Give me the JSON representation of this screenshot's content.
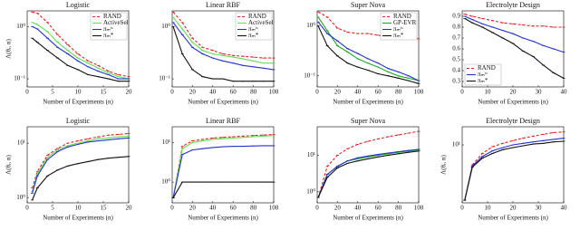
{
  "chart_data": [
    {
      "type": "line",
      "title": "Logistic",
      "xlabel": "Number of Experiments (n)",
      "ylabel": "Λ(θᵣ, n)",
      "log_y": true,
      "legend": "upper right",
      "x": [
        1,
        2,
        4,
        6,
        8,
        10,
        12,
        14,
        16,
        18,
        20
      ],
      "xlim": [
        0,
        20
      ],
      "xticks": [
        0,
        5,
        10,
        15,
        20
      ],
      "ylim": [
        0.07,
        2
      ],
      "yticks": [
        {
          "value": 0.1,
          "label": "10⁻¹"
        },
        {
          "value": 1,
          "label": "10⁰"
        }
      ],
      "series": [
        {
          "name": "RAND",
          "color": "#e02020",
          "dash": true,
          "values": [
            1.9,
            1.8,
            1.2,
            0.7,
            0.45,
            0.3,
            0.22,
            0.18,
            0.14,
            0.12,
            0.11
          ]
        },
        {
          "name": "ActiveSel",
          "color": "#66dd55",
          "values": [
            1.2,
            1.1,
            0.8,
            0.5,
            0.35,
            0.25,
            0.2,
            0.16,
            0.13,
            0.11,
            0.1
          ]
        },
        {
          "name": "πₘᵗˢ",
          "color": "#2233cc",
          "values": [
            1.0,
            0.9,
            0.6,
            0.4,
            0.3,
            0.22,
            0.17,
            0.14,
            0.12,
            0.1,
            0.1
          ]
        },
        {
          "name": "πₘ*",
          "color": "#111111",
          "values": [
            0.6,
            0.5,
            0.35,
            0.25,
            0.18,
            0.15,
            0.12,
            0.11,
            0.1,
            0.09,
            0.09
          ]
        }
      ]
    },
    {
      "type": "line",
      "title": "Linear RBF",
      "xlabel": "Number of Experiments (n)",
      "log_y": true,
      "legend": "upper right",
      "x": [
        1,
        10,
        20,
        30,
        40,
        50,
        60,
        70,
        80,
        90,
        100
      ],
      "xlim": [
        0,
        100
      ],
      "xticks": [
        0,
        20,
        40,
        60,
        80,
        100
      ],
      "ylim": [
        0.07,
        2
      ],
      "yticks": [
        {
          "value": 0.1,
          "label": "10⁻¹"
        },
        {
          "value": 1,
          "label": "10⁰"
        }
      ],
      "series": [
        {
          "name": "RAND",
          "color": "#e02020",
          "dash": true,
          "values": [
            1.9,
            1.2,
            0.6,
            0.4,
            0.35,
            0.3,
            0.28,
            0.27,
            0.26,
            0.25,
            0.25
          ]
        },
        {
          "name": "ActiveSel",
          "color": "#66dd55",
          "values": [
            1.5,
            0.9,
            0.5,
            0.35,
            0.3,
            0.28,
            0.26,
            0.24,
            0.22,
            0.2,
            0.2
          ]
        },
        {
          "name": "πₘᵗˢ",
          "color": "#2233cc",
          "values": [
            1.2,
            0.7,
            0.4,
            0.3,
            0.25,
            0.22,
            0.2,
            0.18,
            0.17,
            0.16,
            0.15
          ]
        },
        {
          "name": "πₘ*",
          "color": "#111111",
          "values": [
            1.0,
            0.3,
            0.15,
            0.11,
            0.1,
            0.1,
            0.09,
            0.09,
            0.09,
            0.09,
            0.09
          ]
        }
      ]
    },
    {
      "type": "line",
      "title": "Super Nova",
      "xlabel": "Number of Experiments (n)",
      "log_y": true,
      "legend": "upper right",
      "x": [
        1,
        10,
        20,
        30,
        40,
        50,
        60,
        70,
        80,
        90,
        100
      ],
      "xlim": [
        0,
        100
      ],
      "xticks": [
        0,
        20,
        40,
        60,
        80,
        100
      ],
      "ylim": [
        0.06,
        2
      ],
      "yticks": [
        {
          "value": 0.1,
          "label": "10⁻¹"
        },
        {
          "value": 1,
          "label": "10⁰"
        }
      ],
      "series": [
        {
          "name": "RAND",
          "color": "#e02020",
          "dash": true,
          "values": [
            1.9,
            1.5,
            0.9,
            0.75,
            0.7,
            0.7,
            0.65,
            0.6,
            0.6,
            0.6,
            0.55
          ]
        },
        {
          "name": "GP-EVR",
          "color": "#22aa22",
          "values": [
            1.5,
            0.8,
            0.4,
            0.3,
            0.22,
            0.18,
            0.15,
            0.12,
            0.1,
            0.09,
            0.08
          ]
        },
        {
          "name": "πₘᵗˢ",
          "color": "#2233cc",
          "values": [
            1.2,
            0.7,
            0.5,
            0.35,
            0.28,
            0.22,
            0.18,
            0.14,
            0.12,
            0.1,
            0.08
          ]
        },
        {
          "name": "πₘ*",
          "color": "#111111",
          "values": [
            1.0,
            0.4,
            0.25,
            0.18,
            0.15,
            0.13,
            0.11,
            0.1,
            0.09,
            0.08,
            0.07
          ]
        }
      ]
    },
    {
      "type": "line",
      "title": "Electrolyte Design",
      "xlabel": "Number of Experiments (n)",
      "log_y": false,
      "legend": "lower left",
      "x": [
        1,
        4,
        8,
        12,
        16,
        20,
        24,
        28,
        32,
        36,
        40
      ],
      "xlim": [
        0,
        40
      ],
      "xticks": [
        0,
        10,
        20,
        30,
        40
      ],
      "ylim": [
        0.25,
        0.95
      ],
      "yticks": [
        0.3,
        0.4,
        0.5,
        0.6,
        0.7,
        0.8,
        0.9
      ],
      "series": [
        {
          "name": "RAND",
          "color": "#e02020",
          "dash": true,
          "values": [
            0.92,
            0.9,
            0.88,
            0.86,
            0.84,
            0.83,
            0.82,
            0.81,
            0.81,
            0.8,
            0.8
          ]
        },
        {
          "name": "πₘᵗˢ",
          "color": "#2233cc",
          "values": [
            0.9,
            0.87,
            0.83,
            0.8,
            0.77,
            0.74,
            0.7,
            0.67,
            0.63,
            0.6,
            0.57
          ]
        },
        {
          "name": "πₘ*",
          "color": "#111111",
          "values": [
            0.88,
            0.84,
            0.8,
            0.75,
            0.7,
            0.65,
            0.58,
            0.53,
            0.45,
            0.38,
            0.33
          ]
        }
      ]
    },
    {
      "type": "line",
      "title": "Logistic",
      "xlabel": "Number of Experiments (n)",
      "ylabel": "Λ(θᵣ, n)",
      "log_y": true,
      "x": [
        1,
        2,
        4,
        6,
        8,
        10,
        12,
        14,
        16,
        18,
        20
      ],
      "xlim": [
        0,
        20
      ],
      "xticks": [
        0,
        5,
        10,
        15,
        20
      ],
      "ylim": [
        0.8,
        20
      ],
      "yticks": [
        {
          "value": 1,
          "label": "10⁰"
        },
        {
          "value": 10,
          "label": "10¹"
        }
      ],
      "series": [
        {
          "color": "#e02020",
          "dash": true,
          "values": [
            1.5,
            3,
            6,
            8,
            10,
            11,
            12,
            13,
            14,
            14.5,
            15
          ]
        },
        {
          "color": "#66dd55",
          "values": [
            1.3,
            2.7,
            5.5,
            7.5,
            9,
            10,
            11,
            12,
            12.5,
            13,
            13.5
          ]
        },
        {
          "color": "#2233cc",
          "values": [
            1.2,
            2.5,
            5,
            7,
            8.5,
            9.5,
            10.5,
            11,
            11.5,
            12,
            12.5
          ]
        },
        {
          "color": "#111111",
          "values": [
            0.9,
            1.5,
            2.5,
            3.2,
            3.8,
            4.2,
            4.6,
            5,
            5.3,
            5.5,
            5.7
          ]
        }
      ]
    },
    {
      "type": "line",
      "title": "Linear RBF",
      "xlabel": "Number of Experiments (n)",
      "log_y": true,
      "x": [
        1,
        10,
        20,
        30,
        40,
        50,
        60,
        70,
        80,
        90,
        100
      ],
      "xlim": [
        0,
        100
      ],
      "xticks": [
        0,
        20,
        40,
        60,
        80,
        100
      ],
      "ylim": [
        0.3,
        25
      ],
      "yticks": [
        {
          "value": 1,
          "label": "10⁰"
        },
        {
          "value": 10,
          "label": "10¹"
        }
      ],
      "series": [
        {
          "color": "#e02020",
          "dash": true,
          "values": [
            0.4,
            8,
            11,
            12,
            13,
            13.5,
            14,
            14.5,
            15,
            15.5,
            16
          ]
        },
        {
          "color": "#66dd55",
          "values": [
            0.4,
            7,
            10,
            11,
            12,
            12.5,
            13,
            13.5,
            14,
            14.5,
            15
          ]
        },
        {
          "color": "#2233cc",
          "values": [
            0.4,
            5,
            6.5,
            7,
            7.5,
            7.8,
            8,
            8,
            8.2,
            8.3,
            8.3
          ]
        },
        {
          "color": "#111111",
          "values": [
            0.4,
            1,
            1,
            1,
            1,
            1,
            1,
            1,
            1,
            1,
            1
          ]
        }
      ]
    },
    {
      "type": "line",
      "title": "Super Nova",
      "xlabel": "Number of Experiments (n)",
      "log_y": true,
      "x": [
        1,
        10,
        20,
        30,
        40,
        50,
        60,
        70,
        80,
        90,
        100
      ],
      "xlim": [
        0,
        100
      ],
      "xticks": [
        0,
        20,
        40,
        60,
        80,
        100
      ],
      "ylim": [
        0.5,
        60
      ],
      "yticks": [
        {
          "value": 1,
          "label": "10⁰"
        },
        {
          "value": 10,
          "label": "10¹"
        }
      ],
      "series": [
        {
          "color": "#e02020",
          "dash": true,
          "values": [
            0.7,
            5,
            10,
            15,
            20,
            24,
            28,
            32,
            36,
            40,
            45
          ]
        },
        {
          "color": "#22aa22",
          "values": [
            0.7,
            3,
            5,
            7,
            8,
            9,
            10,
            11,
            12,
            13,
            14
          ]
        },
        {
          "color": "#2233cc",
          "values": [
            0.7,
            3,
            5,
            7,
            8.5,
            9.5,
            10.5,
            11.5,
            12.5,
            13.5,
            14.5
          ]
        },
        {
          "color": "#111111",
          "values": [
            0.7,
            2.5,
            4.5,
            6,
            7,
            8,
            9,
            10,
            11,
            12,
            13
          ]
        }
      ]
    },
    {
      "type": "line",
      "title": "Electrolyte Design",
      "xlabel": "Number of Experiments (n)",
      "ylabel": "Λ(θᵣ, n)",
      "log_y": true,
      "x": [
        1,
        4,
        8,
        12,
        16,
        20,
        24,
        28,
        32,
        36,
        40
      ],
      "xlim": [
        0,
        40
      ],
      "xticks": [
        0,
        10,
        20,
        30,
        40
      ],
      "ylim": [
        0.3,
        30
      ],
      "yticks": [
        {
          "value": 10,
          "label": "10¹"
        }
      ],
      "series": [
        {
          "color": "#e02020",
          "dash": true,
          "values": [
            0.35,
            3,
            6,
            9,
            11,
            13,
            15,
            17,
            19,
            21,
            22
          ]
        },
        {
          "color": "#2233cc",
          "values": [
            0.35,
            2.8,
            5,
            7,
            8.5,
            10,
            11,
            12,
            13,
            14,
            15
          ]
        },
        {
          "color": "#111111",
          "values": [
            0.35,
            2.6,
            4.5,
            6,
            7.5,
            8.5,
            9.5,
            10.5,
            11,
            12,
            12.5
          ]
        }
      ]
    }
  ]
}
